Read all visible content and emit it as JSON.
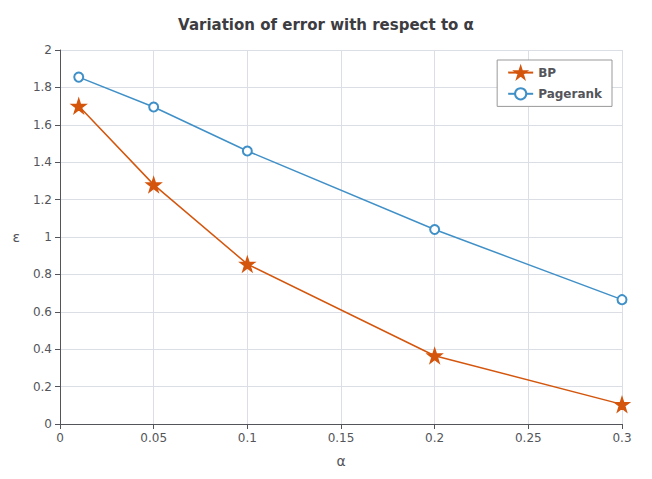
{
  "chart_data": {
    "type": "line",
    "title": "Variation of error with respect to α",
    "x_label": "α",
    "y_label": "ε",
    "xlim": [
      0,
      0.3
    ],
    "ylim": [
      0,
      2.0
    ],
    "xticks": [
      0,
      0.05,
      0.1,
      0.15,
      0.2,
      0.25,
      0.3
    ],
    "yticks": [
      0,
      0.2,
      0.4,
      0.6,
      0.8,
      1,
      1.2,
      1.4,
      1.6,
      1.8,
      2
    ],
    "series": [
      {
        "name": "BP",
        "color": "#d4550c",
        "marker": "*",
        "x": [
          0.01,
          0.05,
          0.1,
          0.2,
          0.3
        ],
        "values": [
          1.7,
          1.28,
          0.855,
          0.365,
          0.105
        ]
      },
      {
        "name": "Pagerank",
        "color": "#4090c8",
        "marker": "o",
        "x": [
          0.01,
          0.05,
          0.1,
          0.2,
          0.3
        ],
        "values": [
          1.855,
          1.695,
          1.46,
          1.04,
          0.665
        ]
      }
    ],
    "legend": "upper right",
    "grid": true
  }
}
